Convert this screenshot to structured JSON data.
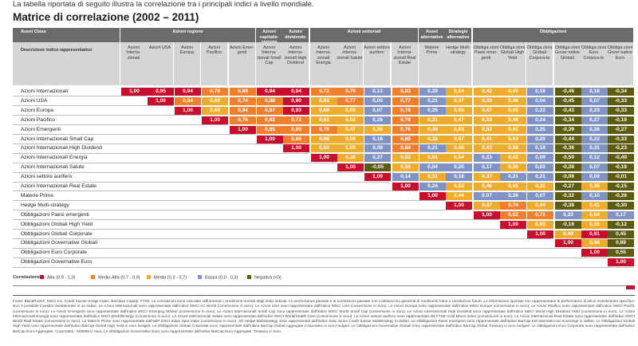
{
  "intro": "La tabella riportata di seguito illustra la correlazione tra i principali indici a livello mondiale.",
  "title": "Matrice di correlazione (2002 – 2011)",
  "colors": {
    "alta": "#c8102e",
    "medio_alta": "#f07f2d",
    "media": "#eeac2f",
    "bassa": "#7f94c5",
    "negativa": "#5d5c12",
    "header_dark": "#6b6b6b",
    "header_light": "#d4d5d7"
  },
  "header": {
    "asset_class_label": "Asset Class",
    "description_label": "Descrizione indice rappresentativo",
    "groups": [
      {
        "label": "Azioni regione",
        "span": 5
      },
      {
        "label": "Azioni capitaliz-zazione",
        "span": 1
      },
      {
        "label": "Azioni dividendo",
        "span": 1
      },
      {
        "label": "Azioni settoriali",
        "span": 4
      },
      {
        "label": "Asset alternative",
        "span": 1
      },
      {
        "label": "Strategie alternative",
        "span": 1
      },
      {
        "label": "Obbligazioni",
        "span": 6
      }
    ],
    "columns": [
      "Azioni Interna-zionali",
      "Azioni USA",
      "Azioni Europa",
      "Azioni Pacifico",
      "Azioni Emer-genti",
      "Azioni Interna-zionali Small Cap",
      "Azioni Interna-zionali High Dividend",
      "Azioni Interna-zionali Energia",
      "Azioni Interna-zionali Salute",
      "Azioni settore aurifero",
      "Azioni Interna-zionali Real Estate",
      "Materie Prime",
      "Hedge Multi-strategy",
      "Obbliga-zioni Paesi emer-genti",
      "Obbliga-zioni Globali High Yield",
      "Obbliga-zioni Globali Corpora-te",
      "Obbliga-zioni Gover-native Globali",
      "Obbliga-zioni Euro Corpora-te",
      "Obbliga-zioni Gover-native Euro"
    ]
  },
  "chart_data": {
    "type": "heatmap",
    "title": "Matrice di correlazione (2002 – 2011)",
    "rows": [
      "Azioni Internazionali",
      "Azioni USA",
      "Azioni Europa",
      "Azioni Pacifico",
      "Azioni Emergenti",
      "Azioni Internazionali Small Cap",
      "Azioni Internazionali High Dividend",
      "Azioni Internazionali Energia",
      "Azioni Internazionali Salute",
      "Azioni settore aurifero",
      "Azioni Internazionali Real Estate",
      "Materie Prime",
      "Hedge Multi-strategy",
      "Obbligazioni Paesi emergenti",
      "Obbligazioni Globali High Yield",
      "Obbligazioni Globali Corporate",
      "Obbligazioni Governative Globali",
      "Obbligazioni Euro Corporate",
      "Obbligazioni Governative Euro"
    ],
    "values": [
      [
        "1,00",
        "0,95",
        "0,94",
        "0,79",
        "0,88",
        "0,94",
        "0,94",
        "0,72",
        "0,70",
        "0,13",
        "0,83",
        "0,29",
        "0,54",
        "0,42",
        "0,60",
        "0,16",
        "-0,46",
        "0,18",
        "-0,34"
      ],
      [
        "1,00",
        "0,84",
        "0,69",
        "0,74",
        "0,88",
        "0,90",
        "0,63",
        "0,77",
        "0,03",
        "0,77",
        "0,21",
        "0,37",
        "0,30",
        "0,48",
        "0,04",
        "-0,45",
        "0,07",
        "-0,33"
      ],
      [
        "1,00",
        "0,69",
        "0,84",
        "0,87",
        "0,93",
        "0,69",
        "0,60",
        "0,07",
        "0,78",
        "0,25",
        "0,60",
        "0,47",
        "0,65",
        "0,22",
        "-0,43",
        "0,23",
        "-0,33"
      ],
      [
        "1,00",
        "0,76",
        "0,82",
        "0,72",
        "0,61",
        "0,52",
        "0,28",
        "0,78",
        "0,31",
        "0,47",
        "0,33",
        "0,48",
        "0,24",
        "-0,34",
        "0,27",
        "-0,19"
      ],
      [
        "1,00",
        "0,85",
        "0,80",
        "0,70",
        "0,47",
        "0,35",
        "0,76",
        "0,39",
        "0,63",
        "0,52",
        "0,65",
        "0,25",
        "-0,39",
        "0,26",
        "-0,27"
      ],
      [
        "1,00",
        "0,86",
        "0,68",
        "0,59",
        "0,18",
        "0,85",
        "0,32",
        "0,57",
        "0,41",
        "0,63",
        "0,20",
        "-0,44",
        "0,22",
        "-0,33"
      ],
      [
        "1,00",
        "0,63",
        "0,69",
        "0,08",
        "0,84",
        "0,21",
        "0,46",
        "0,43",
        "0,58",
        "0,19",
        "-0,36",
        "0,21",
        "-0,23"
      ],
      [
        "1,00",
        "0,38",
        "0,27",
        "0,52",
        "0,61",
        "0,54",
        "0,23",
        "0,42",
        "0,09",
        "-0,50",
        "0,12",
        "-0,40"
      ],
      [
        "1,00",
        "-0,05",
        "0,55",
        "0,04",
        "0,20",
        "0,17",
        "0,30",
        "0,03",
        "-0,28",
        "0,07",
        "-0,19"
      ],
      [
        "1,00",
        "0,14",
        "0,31",
        "0,18",
        "0,37",
        "0,21",
        "0,21",
        "-0,06",
        "0,09",
        "-0,01"
      ],
      [
        "1,00",
        "0,24",
        "0,52",
        "0,46",
        "0,65",
        "0,32",
        "-0,27",
        "0,35",
        "-0,15"
      ],
      [
        "1,00",
        "0,44",
        "0,07",
        "0,26",
        "0,07",
        "-0,32",
        "0,10",
        "-0,26"
      ],
      [
        "1,00",
        "0,47",
        "0,74",
        "0,44",
        "-0,38",
        "0,41",
        "-0,30"
      ],
      [
        "1,00",
        "0,82",
        "0,71",
        "0,23",
        "0,54",
        "0,17"
      ],
      [
        "1,00",
        "0,65",
        "-0,16",
        "0,55",
        "-0,12"
      ],
      [
        "1,00",
        "0,49",
        "0,91",
        "0,45"
      ],
      [
        "1,00",
        "0,44",
        "0,89"
      ],
      [
        "1,00",
        "0,55"
      ],
      [
        "1,00"
      ]
    ],
    "categories": {
      "alta": [
        0.9,
        1.0
      ],
      "medio_alta": [
        0.7,
        0.9
      ],
      "media": [
        0.3,
        0.7
      ],
      "bassa": [
        0.0,
        0.3
      ],
      "negativa": "<0"
    },
    "overrides_negativa_positive": [
      [
        15,
        18
      ],
      [
        16,
        18
      ],
      [
        17,
        18
      ]
    ]
  },
  "legend": {
    "title": "Correlazione",
    "items": [
      {
        "label": "Alta (0,9 - 1,0)",
        "key": "alta"
      },
      {
        "label": "Medio-Alta (0,7 - 0,9)",
        "key": "medio_alta"
      },
      {
        "label": "Media (0,3 - 0,7)",
        "key": "media"
      },
      {
        "label": "Bassa (0,0 - 0,3)",
        "key": "bassa"
      },
      {
        "label": "Negativa (<0)",
        "key": "negativa"
      }
    ]
  },
  "source": "Fonte: BlackRock®, MSCI Inc, Credit Suisse Hedge Index, Barclays Capital, FTSE. Le correlazioni sono calcolate raffrontando i rendimenti mensili degli indici indicati. Le performance passate e le correlazioni passate non costituiscono garanzia di rendimenti futuri o correlazioni future. Le informazioni riportate non rappresentano le performance di alcun investimento specifico. Non è possibile investire direttamente in un indice. Le Azioni Internazionali sono rappresentate dall'indice MSCI AC World (conversione in euro). Le Azioni USA sono rappresentate dall'indice MSCI USA (conversione in euro). Le Azioni Europa sono rappresentate dall'indice MSCI Europe (conversione in euro). Le Azioni Pacifico sono rappresentate dall'indice MSCI Pacific (conversione in euro). Le Azioni Emergenti sono rappresentate dall'indice MSCI Emerging Market (conversione in euro). Le Azioni Internazionali Small Cap sono rappresentate dall'indice MSCI World Small Cap (conversione in euro). Le Azioni Internazionali High Dividend sono rappresentate dall'indice MSCI World High Dividend Yield (conversione in euro). Le Azioni Internazionali Energia sono rappresentate dall'indice MSCI World/Energy (conversione in euro). Le Azioni Internazionali Salute sono rappresentate dall'indice MSCI World/Health Care (conversione in euro). Le Azioni settore aurifero sono rappresentate dal FTSE Gold Mines Index (conversione in euro). Le Azioni Internazionali Real Estate sono rappresentate dall'indice MSCI World Real Estate (conversione in euro). Le Materie Prime sono rappresentate dall'S&P GSCI Index Spot Index (conversione in euro). Gli Hedge Multistrategy sono rappresentati dall'indice Dow Jones Credit Suisse Multistrategy in dollari. Le Obbligazioni Paesi emergenti sono rappresentate dall'indice BarCap EM Internatio-nal Sovereign in dollari. Le Obbligazioni Globali High Yield sono rappresentate dall'indice BarCap Global High Yield in euro hedged. Le Obbligazioni Globali Corporate sono rappresentate dall'indice BarCap Global Aggregate-Corporates in euro hedged. Le Obbligazioni Governative Globali sono rappresentate dall'indice BarCap Global Treasury in euro hedged. Le Obbligazioni Euro Corporate sono rappresentate dall'indice BarCap Euro-Aggregate: Corporates - 500MM in euro. Le Obbligazioni Governative Euro sono rappresentate dall'indice BarCap Euro-Aggregate: Treasury in euro."
}
